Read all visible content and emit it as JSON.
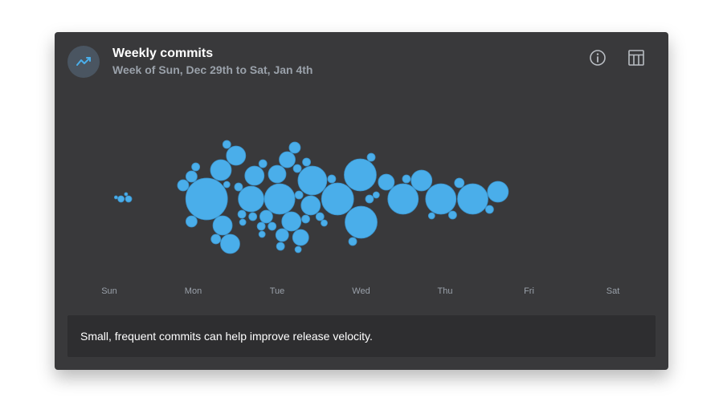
{
  "header": {
    "icon": "trend-line-icon",
    "title": "Weekly commits",
    "subtitle": "Week of Sun, Dec 29th to Sat, Jan 4th",
    "info_icon": "info-icon",
    "table_icon": "table-view-icon"
  },
  "colors": {
    "card_bg": "#39393b",
    "bubble": "#4aaeea",
    "bubble_stroke": "#3b93cc",
    "axis_text": "#9aa1aa"
  },
  "chart_data": {
    "type": "scatter",
    "title": "",
    "xlabel": "",
    "ylabel": "",
    "categories": [
      "Sun",
      "Mon",
      "Tue",
      "Wed",
      "Thu",
      "Fri",
      "Sat"
    ],
    "xlim": [
      0,
      7
    ],
    "grid": false,
    "legend": "none",
    "encoding": "beeswarm; x = commit time in days from Sunday 00:00, r = commit size",
    "points": [
      {
        "x": 0.08,
        "r": 2
      },
      {
        "x": 0.14,
        "r": 4
      },
      {
        "x": 0.2,
        "r": 2
      },
      {
        "x": 0.23,
        "r": 4
      },
      {
        "x": 0.88,
        "r": 7
      },
      {
        "x": 0.98,
        "r": 7
      },
      {
        "x": 0.98,
        "r": 7
      },
      {
        "x": 1.03,
        "r": 5
      },
      {
        "x": 1.16,
        "r": 26
      },
      {
        "x": 1.27,
        "r": 6
      },
      {
        "x": 1.33,
        "r": 13
      },
      {
        "x": 1.35,
        "r": 12
      },
      {
        "x": 1.4,
        "r": 5
      },
      {
        "x": 1.4,
        "r": 4
      },
      {
        "x": 1.44,
        "r": 12
      },
      {
        "x": 1.51,
        "r": 12
      },
      {
        "x": 1.54,
        "r": 5
      },
      {
        "x": 1.58,
        "r": 5
      },
      {
        "x": 1.59,
        "r": 4
      },
      {
        "x": 1.69,
        "r": 16
      },
      {
        "x": 1.71,
        "r": 5
      },
      {
        "x": 1.73,
        "r": 12
      },
      {
        "x": 1.81,
        "r": 5
      },
      {
        "x": 1.82,
        "r": 4
      },
      {
        "x": 1.83,
        "r": 5
      },
      {
        "x": 1.87,
        "r": 8
      },
      {
        "x": 1.94,
        "r": 5
      },
      {
        "x": 2.0,
        "r": 11
      },
      {
        "x": 2.03,
        "r": 19
      },
      {
        "x": 2.04,
        "r": 5
      },
      {
        "x": 2.06,
        "r": 8
      },
      {
        "x": 2.12,
        "r": 10
      },
      {
        "x": 2.17,
        "r": 12
      },
      {
        "x": 2.21,
        "r": 7
      },
      {
        "x": 2.24,
        "r": 5
      },
      {
        "x": 2.25,
        "r": 4
      },
      {
        "x": 2.26,
        "r": 5
      },
      {
        "x": 2.28,
        "r": 10
      },
      {
        "x": 2.34,
        "r": 5
      },
      {
        "x": 2.35,
        "r": 5
      },
      {
        "x": 2.4,
        "r": 12
      },
      {
        "x": 2.42,
        "r": 18
      },
      {
        "x": 2.51,
        "r": 5
      },
      {
        "x": 2.56,
        "r": 4
      },
      {
        "x": 2.65,
        "r": 5
      },
      {
        "x": 2.72,
        "r": 20
      },
      {
        "x": 2.99,
        "r": 20
      },
      {
        "x": 2.9,
        "r": 5
      },
      {
        "x": 3.1,
        "r": 5
      },
      {
        "x": 3.0,
        "r": 20
      },
      {
        "x": 3.12,
        "r": 5
      },
      {
        "x": 3.18,
        "r": 4
      },
      {
        "x": 3.3,
        "r": 10
      },
      {
        "x": 3.5,
        "r": 19
      },
      {
        "x": 3.54,
        "r": 5
      },
      {
        "x": 3.72,
        "r": 13
      },
      {
        "x": 3.84,
        "r": 4
      },
      {
        "x": 3.95,
        "r": 19
      },
      {
        "x": 4.09,
        "r": 5
      },
      {
        "x": 4.17,
        "r": 6
      },
      {
        "x": 4.33,
        "r": 19
      },
      {
        "x": 4.53,
        "r": 5
      },
      {
        "x": 4.63,
        "r": 13
      }
    ]
  },
  "tip": {
    "text": "Small, frequent commits can help improve release velocity."
  }
}
